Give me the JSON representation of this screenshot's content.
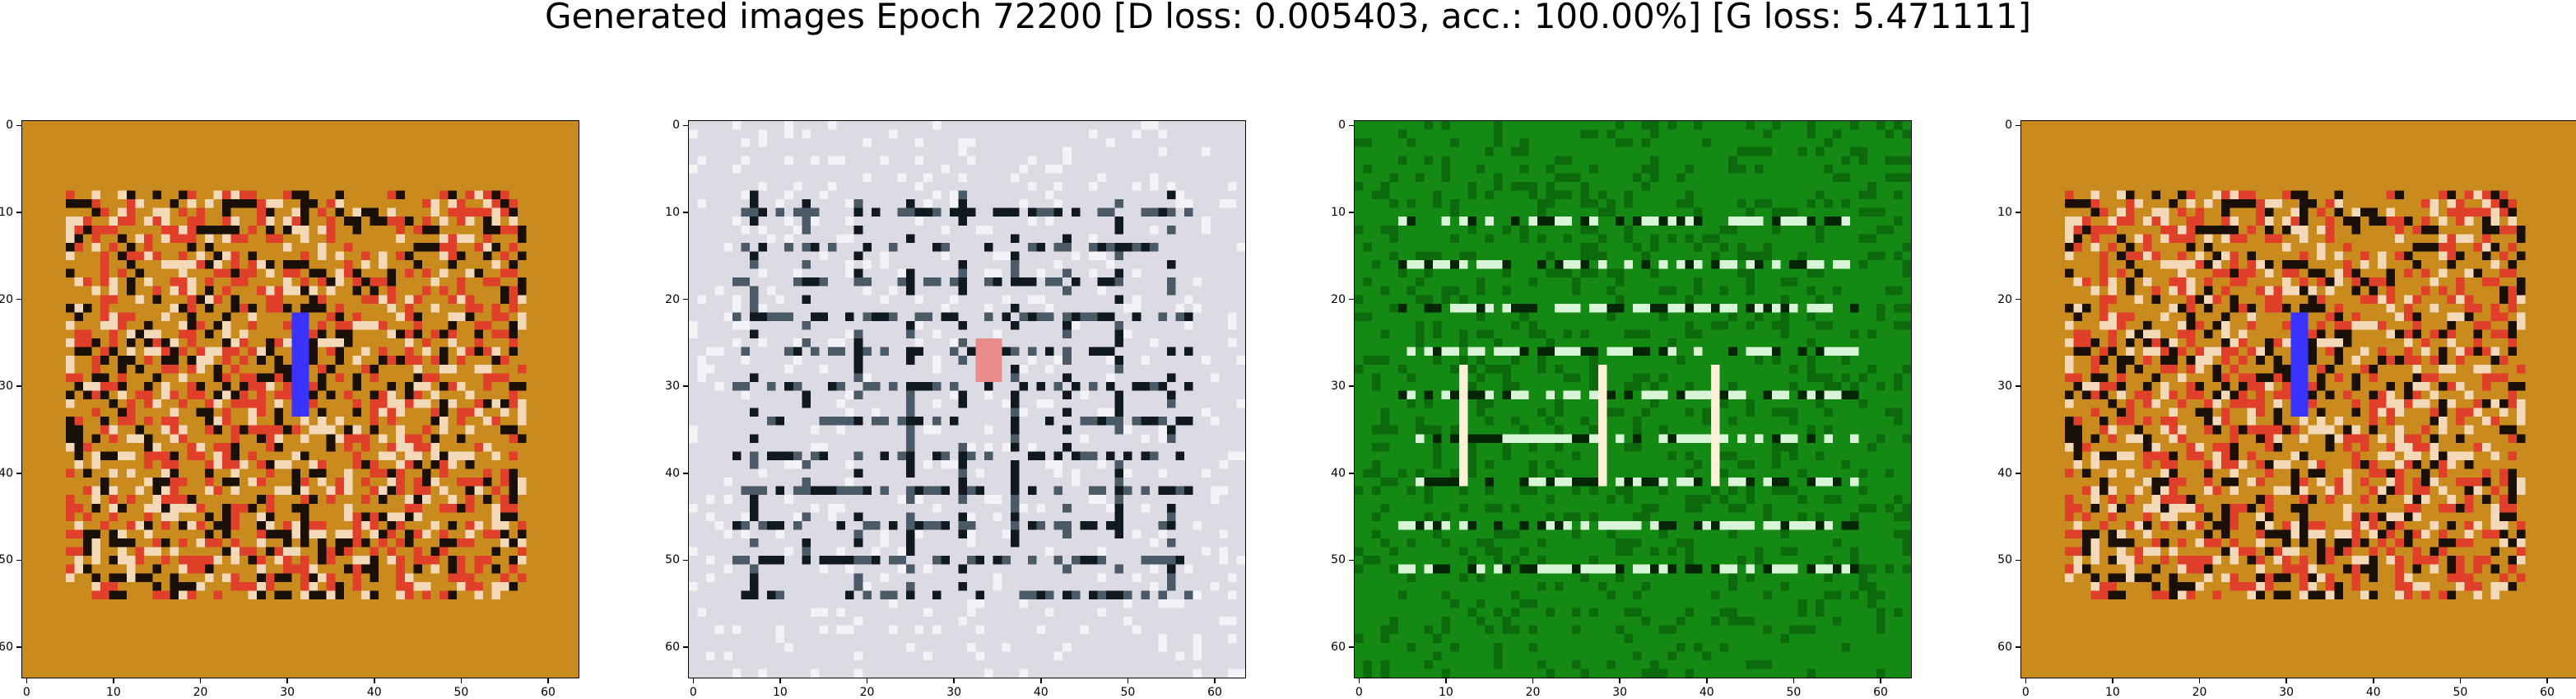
{
  "title": "Generated images Epoch 72200 [D loss: 0.005403, acc.: 100.00%] [G loss: 5.471111]",
  "ticks": {
    "x": [
      "0",
      "10",
      "20",
      "30",
      "40",
      "50",
      "60"
    ],
    "y": [
      "0",
      "10",
      "20",
      "30",
      "40",
      "50",
      "60"
    ]
  },
  "images": [
    {
      "name": "generated-image-1",
      "palette": {
        "base": "#c98a1e",
        "dark": "#1a1008",
        "accent": "#e0402a",
        "light": "#f4d9b8",
        "highlight": "#3a33ff"
      }
    },
    {
      "name": "generated-image-2",
      "palette": {
        "base": "#dcdbe3",
        "dark": "#101820",
        "accent": "#4a5a66",
        "light": "#f3f2f7",
        "highlight": "#e88c8c"
      }
    },
    {
      "name": "generated-image-3",
      "palette": {
        "base": "#148a14",
        "dark": "#052605",
        "accent": "#0c6a0c",
        "light": "#d8f5d8",
        "highlight": "#fff0d8"
      }
    },
    {
      "name": "generated-image-4",
      "palette": {
        "base": "#c98a1e",
        "dark": "#1a1008",
        "accent": "#e0402a",
        "light": "#f4d9b8",
        "highlight": "#3a33ff"
      }
    }
  ]
}
